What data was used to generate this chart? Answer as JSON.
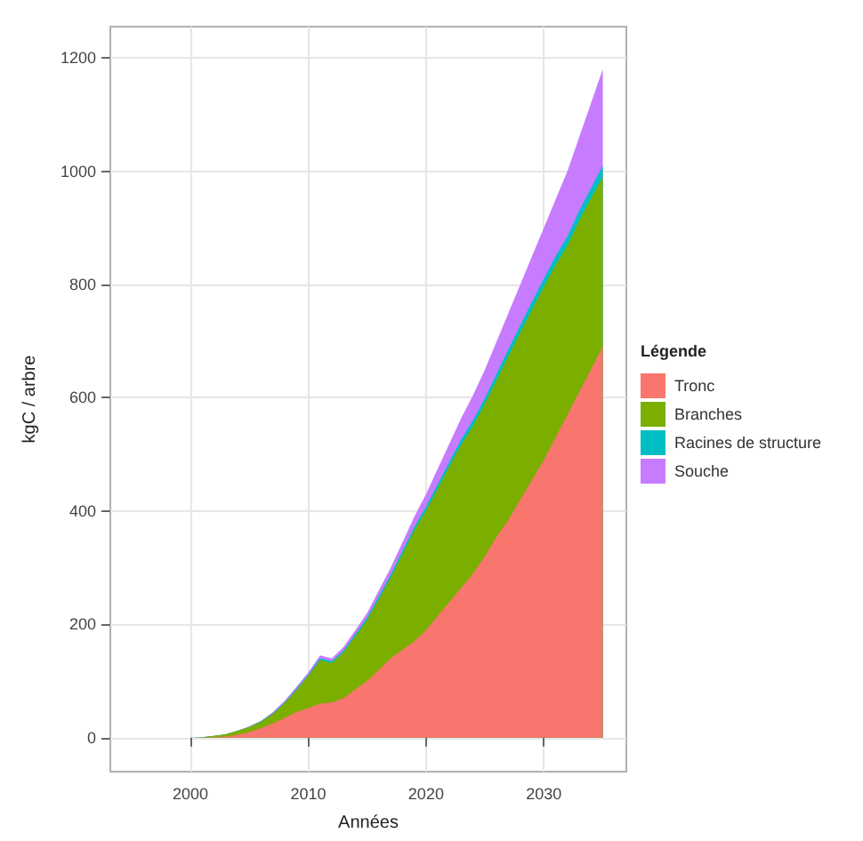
{
  "chart_data": {
    "type": "area",
    "stacked": true,
    "xlabel": "Années",
    "ylabel": "kgC / arbre",
    "legend_title": "Légende",
    "legend": "right",
    "grid": true,
    "x": [
      2000,
      2001,
      2002,
      2003,
      2004,
      2005,
      2006,
      2007,
      2008,
      2009,
      2010,
      2011,
      2012,
      2013,
      2014,
      2015,
      2016,
      2017,
      2018,
      2019,
      2020,
      2021,
      2022,
      2023,
      2024,
      2025,
      2026,
      2027,
      2028,
      2029,
      2030,
      2031,
      2032,
      2033,
      2034,
      2035
    ],
    "xlim": [
      1993.2,
      2037
    ],
    "xticks": [
      2000,
      2010,
      2020,
      2030
    ],
    "ylim": [
      -60,
      1255
    ],
    "yticks": [
      0,
      200,
      400,
      600,
      800,
      1000,
      1200
    ],
    "series": [
      {
        "name": "Tronc",
        "color": "#f8766d",
        "values": [
          0,
          0,
          1,
          2,
          5,
          10,
          17,
          25,
          35,
          45,
          52,
          60,
          62,
          70,
          85,
          100,
          120,
          140,
          155,
          170,
          190,
          215,
          240,
          265,
          290,
          320,
          355,
          385,
          420,
          455,
          490,
          530,
          570,
          610,
          650,
          690
        ]
      },
      {
        "name": "Branches",
        "color": "#7cae00",
        "values": [
          0,
          1,
          2,
          4,
          7,
          9,
          11,
          17,
          26,
          39,
          57,
          77,
          70,
          81,
          94,
          108,
          125,
          143,
          169,
          196,
          211,
          225,
          240,
          253,
          261,
          270,
          277,
          289,
          295,
          301,
          306,
          305,
          299,
          303,
          302,
          300
        ]
      },
      {
        "name": "Racines de structure",
        "color": "#00bfc4",
        "values": [
          0,
          0,
          0,
          0,
          0,
          0,
          1,
          1,
          1,
          2,
          2,
          3,
          3,
          3,
          4,
          4,
          5,
          5,
          6,
          6,
          7,
          8,
          8,
          9,
          10,
          10,
          11,
          12,
          13,
          14,
          14,
          15,
          16,
          17,
          18,
          20
        ]
      },
      {
        "name": "Souche",
        "color": "#c77cff",
        "values": [
          0,
          0,
          0,
          0,
          0,
          1,
          1,
          2,
          3,
          4,
          4,
          5,
          5,
          6,
          7,
          8,
          10,
          12,
          15,
          18,
          22,
          27,
          32,
          38,
          44,
          50,
          57,
          64,
          72,
          80,
          90,
          100,
          115,
          130,
          150,
          170
        ]
      }
    ]
  }
}
